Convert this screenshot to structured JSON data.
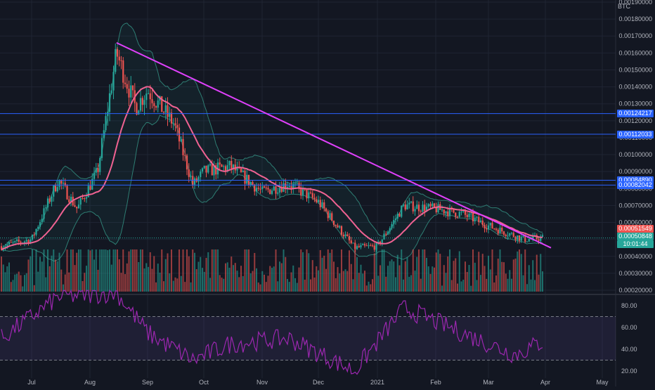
{
  "currency_label": "BTC",
  "price_axis": {
    "labels": [
      "0.00190000",
      "0.00180000",
      "0.00170000",
      "0.00160000",
      "0.00150000",
      "0.00140000",
      "0.00130000",
      "0.00120000",
      "0.00110000",
      "0.00100000",
      "0.00090000",
      "0.00080000",
      "0.00070000",
      "0.00060000",
      "0.00050000",
      "0.00040000",
      "0.00030000",
      "0.00020000"
    ]
  },
  "rsi_axis": {
    "labels": [
      "80.00",
      "60.00",
      "40.00",
      "20.00"
    ]
  },
  "time_axis": {
    "labels": [
      "Jul",
      "Aug",
      "Sep",
      "Oct",
      "Nov",
      "Dec",
      "2021",
      "Feb",
      "Mar",
      "Apr",
      "May"
    ]
  },
  "horizontal_levels": [
    {
      "label": "0.00124217",
      "value": 0.00124217
    },
    {
      "label": "0.00112033",
      "value": 0.00112033
    },
    {
      "label": "0.00084890",
      "value": 0.0008489
    },
    {
      "label": "0.00082042",
      "value": 0.00082042
    }
  ],
  "current_price_tags": {
    "red_tag": "0.00051549",
    "green_tag": "0.00050848",
    "countdown": "10:01:44"
  },
  "colors": {
    "background": "#131722",
    "bull": "#26a69a",
    "bear": "#ef5350",
    "level_line": "#2962ff",
    "trendline": "#e040fb",
    "ma": "#f06292",
    "rsi": "#9c27b0"
  },
  "chart_data": [
    {
      "type": "candlestick",
      "title": "",
      "xlabel": "",
      "ylabel": "",
      "ylim": [
        0.00018,
        0.0019
      ],
      "x_ticks": [
        "Jul",
        "Aug",
        "Sep",
        "Oct",
        "Nov",
        "Dec",
        "2021",
        "Feb",
        "Mar",
        "Apr",
        "May"
      ],
      "approx_close_path": [
        {
          "x": "Jun 15",
          "y": 0.00046
        },
        {
          "x": "Jul 1",
          "y": 0.0005
        },
        {
          "x": "Jul 15",
          "y": 0.00085
        },
        {
          "x": "Jul 25",
          "y": 0.00068
        },
        {
          "x": "Aug 5",
          "y": 0.0009
        },
        {
          "x": "Aug 15",
          "y": 0.0016
        },
        {
          "x": "Aug 25",
          "y": 0.00128
        },
        {
          "x": "Sep 1",
          "y": 0.00138
        },
        {
          "x": "Sep 15",
          "y": 0.00118
        },
        {
          "x": "Sep 25",
          "y": 0.00082
        },
        {
          "x": "Oct 1",
          "y": 0.0009
        },
        {
          "x": "Oct 15",
          "y": 0.00093
        },
        {
          "x": "Nov 1",
          "y": 0.00078
        },
        {
          "x": "Nov 15",
          "y": 0.00083
        },
        {
          "x": "Dec 1",
          "y": 0.00072
        },
        {
          "x": "Dec 20",
          "y": 0.00045
        },
        {
          "x": "Jan 1",
          "y": 0.00046
        },
        {
          "x": "Jan 15",
          "y": 0.0007
        },
        {
          "x": "Feb 1",
          "y": 0.00068
        },
        {
          "x": "Feb 15",
          "y": 0.00065
        },
        {
          "x": "Mar 1",
          "y": 0.00058
        },
        {
          "x": "Mar 20",
          "y": 0.0005
        },
        {
          "x": "Apr 1",
          "y": 0.00051
        }
      ],
      "trendline": {
        "from": {
          "x": "Aug 15",
          "y": 0.00166
        },
        "to": {
          "x": "Apr 1",
          "y": 0.00045
        }
      }
    },
    {
      "type": "line",
      "title": "",
      "ylim": [
        15,
        95
      ],
      "bands": [
        30,
        70
      ],
      "approx_values": [
        {
          "x": "Jun 15",
          "y": 50
        },
        {
          "x": "Jul 15",
          "y": 88
        },
        {
          "x": "Aug 15",
          "y": 92
        },
        {
          "x": "Sep 1",
          "y": 55
        },
        {
          "x": "Sep 25",
          "y": 30
        },
        {
          "x": "Oct 15",
          "y": 45
        },
        {
          "x": "Nov 15",
          "y": 50
        },
        {
          "x": "Dec 20",
          "y": 20
        },
        {
          "x": "Jan 15",
          "y": 78
        },
        {
          "x": "Feb 15",
          "y": 55
        },
        {
          "x": "Mar 15",
          "y": 35
        },
        {
          "x": "Apr 1",
          "y": 48
        }
      ]
    }
  ]
}
